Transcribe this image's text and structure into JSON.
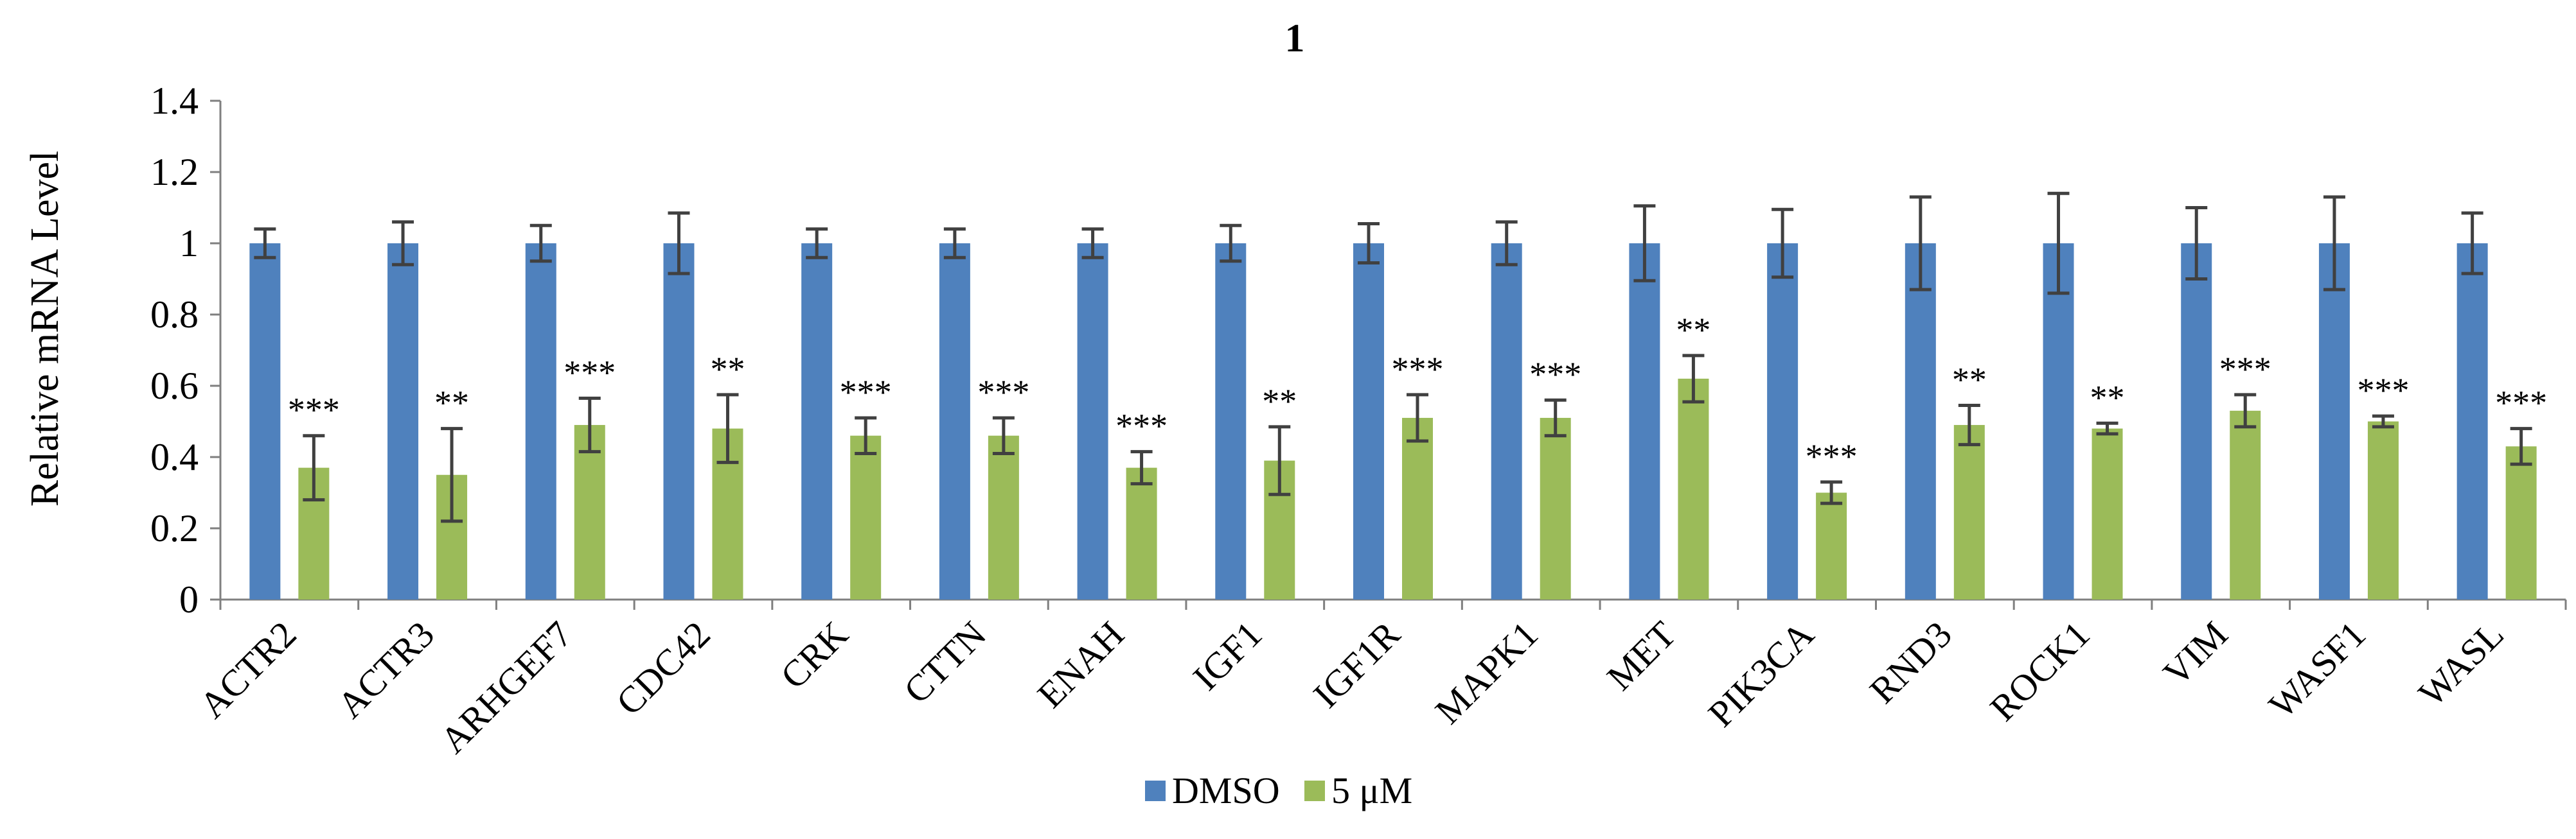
{
  "chart_data": {
    "type": "bar",
    "title": "1",
    "xlabel": "",
    "ylabel": "Relative mRNA Level",
    "ylim": [
      0,
      1.4
    ],
    "yticks": [
      "0",
      "0.2",
      "0.4",
      "0.6",
      "0.8",
      "1",
      "1.2",
      "1.4"
    ],
    "legend_position": "bottom",
    "categories": [
      "ACTR2",
      "ACTR3",
      "ARHGEF7",
      "CDC42",
      "CRK",
      "CTTN",
      "ENAH",
      "IGF1",
      "IGF1R",
      "MAPK1",
      "MET",
      "PIK3CA",
      "RND3",
      "ROCK1",
      "VIM",
      "WASF1",
      "WASL"
    ],
    "series": [
      {
        "name": "DMSO",
        "color": "#4F81BD",
        "values": [
          1,
          1,
          1,
          1,
          1,
          1,
          1,
          1,
          1,
          1,
          1,
          1,
          1,
          1,
          1,
          1,
          1
        ],
        "errors": [
          0.04,
          0.06,
          0.05,
          0.085,
          0.04,
          0.04,
          0.04,
          0.05,
          0.055,
          0.06,
          0.105,
          0.095,
          0.13,
          0.14,
          0.1,
          0.13,
          0.085
        ]
      },
      {
        "name": "5 μM",
        "color": "#9BBB59",
        "values": [
          0.37,
          0.35,
          0.49,
          0.48,
          0.46,
          0.46,
          0.37,
          0.39,
          0.51,
          0.51,
          0.62,
          0.3,
          0.49,
          0.48,
          0.53,
          0.5,
          0.43
        ],
        "errors": [
          0.09,
          0.13,
          0.075,
          0.095,
          0.05,
          0.05,
          0.045,
          0.095,
          0.065,
          0.05,
          0.065,
          0.03,
          0.055,
          0.015,
          0.045,
          0.015,
          0.05
        ]
      }
    ],
    "significance": [
      "***",
      "**",
      "***",
      "**",
      "***",
      "***",
      "***",
      "**",
      "***",
      "***",
      "**",
      "***",
      "**",
      "**",
      "***",
      "***",
      "***"
    ]
  }
}
